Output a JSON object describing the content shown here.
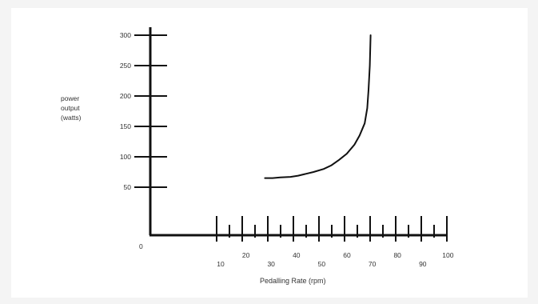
{
  "chart_data": {
    "type": "line",
    "title": "",
    "ylabel_lines": [
      "power",
      "output",
      "(watts)"
    ],
    "xlabel": "Pedalling Rate (rpm)",
    "origin_label": "0",
    "y_ticks": [
      50,
      100,
      150,
      200,
      250,
      300
    ],
    "x_tick_labels": [
      10,
      20,
      30,
      40,
      50,
      60,
      70,
      80,
      90,
      100
    ],
    "grid": false,
    "legend": "none",
    "series": [
      {
        "x": [
          27,
          30,
          33,
          37,
          40,
          43,
          46,
          50,
          53,
          56,
          59,
          62,
          64,
          66,
          67,
          67.5,
          68,
          68.3
        ],
        "y": [
          65,
          65,
          66,
          67,
          69,
          72,
          75,
          80,
          86,
          95,
          105,
          120,
          135,
          155,
          180,
          210,
          250,
          300
        ]
      }
    ]
  }
}
